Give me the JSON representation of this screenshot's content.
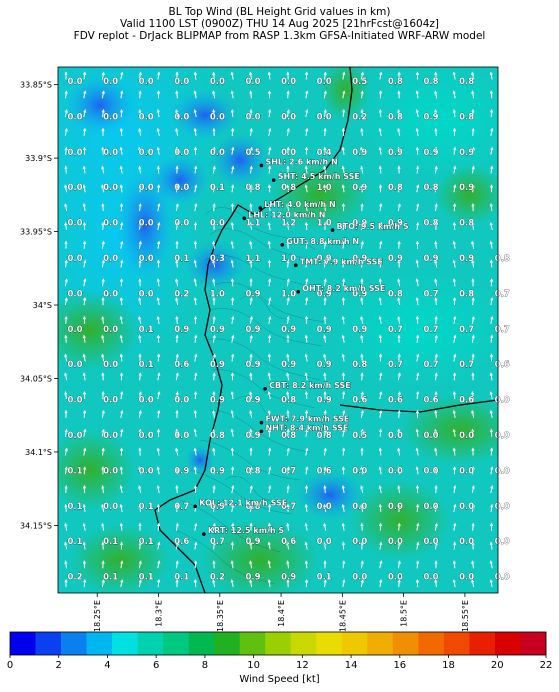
{
  "title": {
    "line1": "BL Top Wind (BL Height Grid values in km)",
    "line2": "Valid 1100 LST (0900Z) THU 14 Aug 2025 [21hrFcst@1604z]",
    "line3": "FDV replot - DrJack BLIPMAP from RASP 1.3km GFSA-Initiated WRF-ARW model"
  },
  "lat_ticks": [
    "33.85°S",
    "33.9°S",
    "33.95°S",
    "34°S",
    "34.05°S",
    "34.1°S",
    "34.15°S"
  ],
  "lon_ticks": [
    "18.25°E",
    "18.3°E",
    "18.35°E",
    "18.4°E",
    "18.45°E",
    "18.5°E",
    "18.55°E"
  ],
  "grid_values": [
    [
      "0.0",
      "0.0",
      "0.0",
      "0.0",
      "0.0",
      "0.0",
      "0.0",
      "0.0",
      "0.5",
      "0.8",
      "0.8",
      "0.8",
      ""
    ],
    [
      "0.0",
      "0.0",
      "0.0",
      "0.0",
      "0.0",
      "0.0",
      "0.0",
      "0.0",
      "0.2",
      "0.8",
      "0.9",
      "0.8",
      ""
    ],
    [
      "0.0",
      "0.0",
      "0.0",
      "0.0",
      "0.0",
      "0.5",
      "0.0",
      "0.4",
      "0.9",
      "0.9",
      "0.9",
      "0.9",
      ""
    ],
    [
      "0.0",
      "0.0",
      "0.0",
      "0.0",
      "0.1",
      "0.8",
      "0.8",
      "1.0",
      "0.9",
      "0.8",
      "0.8",
      "0.9",
      ""
    ],
    [
      "0.0",
      "0.0",
      "0.0",
      "0.0",
      "0.0",
      "1.1",
      "1.2",
      "1.0",
      "0.9",
      "0.9",
      "0.8",
      "0.8",
      ""
    ],
    [
      "0.0",
      "0.0",
      "0.0",
      "0.1",
      "0.3",
      "1.1",
      "1.0",
      "0.9",
      "0.9",
      "0.9",
      "0.9",
      "0.9",
      "0.8"
    ],
    [
      "0.0",
      "0.0",
      "0.0",
      "0.2",
      "1.0",
      "0.9",
      "1.0",
      "0.9",
      "0.9",
      "0.8",
      "0.7",
      "0.8",
      "0.7"
    ],
    [
      "0.0",
      "0.0",
      "0.1",
      "0.9",
      "0.9",
      "0.9",
      "0.9",
      "0.9",
      "0.9",
      "0.7",
      "0.7",
      "0.7",
      "0.7"
    ],
    [
      "0.0",
      "0.0",
      "0.1",
      "0.6",
      "0.9",
      "0.9",
      "0.9",
      "0.9",
      "0.8",
      "0.7",
      "0.7",
      "0.7",
      "0.6"
    ],
    [
      "0.0",
      "0.0",
      "0.0",
      "0.0",
      "0.9",
      "0.9",
      "0.8",
      "0.9",
      "0.6",
      "0.6",
      "0.6",
      "0.6",
      "0.0"
    ],
    [
      "0.0",
      "0.0",
      "0.0",
      "0.0",
      "0.8",
      "0.9",
      "0.8",
      "0.8",
      "0.5",
      "0.0",
      "0.0",
      "0.0",
      "0.0"
    ],
    [
      "0.1",
      "0.0",
      "0.0",
      "0.9",
      "0.9",
      "0.8",
      "0.7",
      "0.6",
      "0.0",
      "0.0",
      "0.0",
      "0.0",
      "0.0"
    ],
    [
      "0.1",
      "0.0",
      "0.1",
      "0.7",
      "0.9",
      "0.8",
      "0.7",
      "0.0",
      "0.0",
      "0.0",
      "0.0",
      "0.0",
      "0.0"
    ],
    [
      "0.1",
      "0.1",
      "0.1",
      "0.6",
      "0.7",
      "0.9",
      "0.6",
      "0.0",
      "0.0",
      "0.0",
      "0.0",
      "0.0",
      "0.0"
    ],
    [
      "0.2",
      "0.1",
      "0.1",
      "0.1",
      "0.2",
      "0.9",
      "0.9",
      "0.1",
      "0.0",
      "0.0",
      "0.0",
      "0.0",
      "0.0"
    ]
  ],
  "stations": [
    {
      "id": "SHL",
      "label": "SHL: 2.6 km/h N",
      "lon": 18.384,
      "lat": 33.905
    },
    {
      "id": "SHT",
      "label": "SHT: 4.5 km/h SSE",
      "lon": 18.394,
      "lat": 33.915
    },
    {
      "id": "LHT",
      "label": "LHT: 4.0 km/h N",
      "lon": 18.383,
      "lat": 33.934
    },
    {
      "id": "LHL",
      "label": "LHL: 12.0 km/h N",
      "lon": 18.37,
      "lat": 33.941
    },
    {
      "id": "BTO",
      "label": "BTO: 9.5 km/h S",
      "lon": 18.442,
      "lat": 33.949
    },
    {
      "id": "GUT",
      "label": "GUT: 8.8 km/h N",
      "lon": 18.401,
      "lat": 33.959
    },
    {
      "id": "TMT",
      "label": "TMT: 7.9 km/h SSE",
      "lon": 18.412,
      "lat": 33.973
    },
    {
      "id": "OHT",
      "label": "OHT: 8.2 km/h SSE",
      "lon": 18.414,
      "lat": 33.991
    },
    {
      "id": "CBT",
      "label": "CBT: 8.2 km/h SSE",
      "lon": 18.387,
      "lat": 34.057
    },
    {
      "id": "FWT",
      "label": "FWT: 7.9 km/h SSE",
      "lon": 18.384,
      "lat": 34.08
    },
    {
      "id": "NHT",
      "label": "NHT: 8.4 km/h SSE",
      "lon": 18.384,
      "lat": 34.086
    },
    {
      "id": "KOL",
      "label": "KOL: 12.1 km/h SSE",
      "lon": 18.33,
      "lat": 34.137
    },
    {
      "id": "KRT",
      "label": "KRT: 12.5 km/h S",
      "lon": 18.337,
      "lat": 34.156
    }
  ],
  "colorbar": {
    "label": "Wind Speed [kt]",
    "ticks": [
      "0",
      "2",
      "4",
      "6",
      "8",
      "10",
      "12",
      "14",
      "16",
      "18",
      "20",
      "22"
    ],
    "colors": [
      "#0000ee",
      "#0a40f0",
      "#0a7fee",
      "#00b6f0",
      "#00e0e0",
      "#00d2b0",
      "#00c880",
      "#00b850",
      "#20b020",
      "#60c010",
      "#9ad000",
      "#c8d800",
      "#e8dc00",
      "#f0c800",
      "#f0ac00",
      "#f09000",
      "#f06a00",
      "#f04a00",
      "#e82000",
      "#d80000",
      "#c80020"
    ]
  }
}
